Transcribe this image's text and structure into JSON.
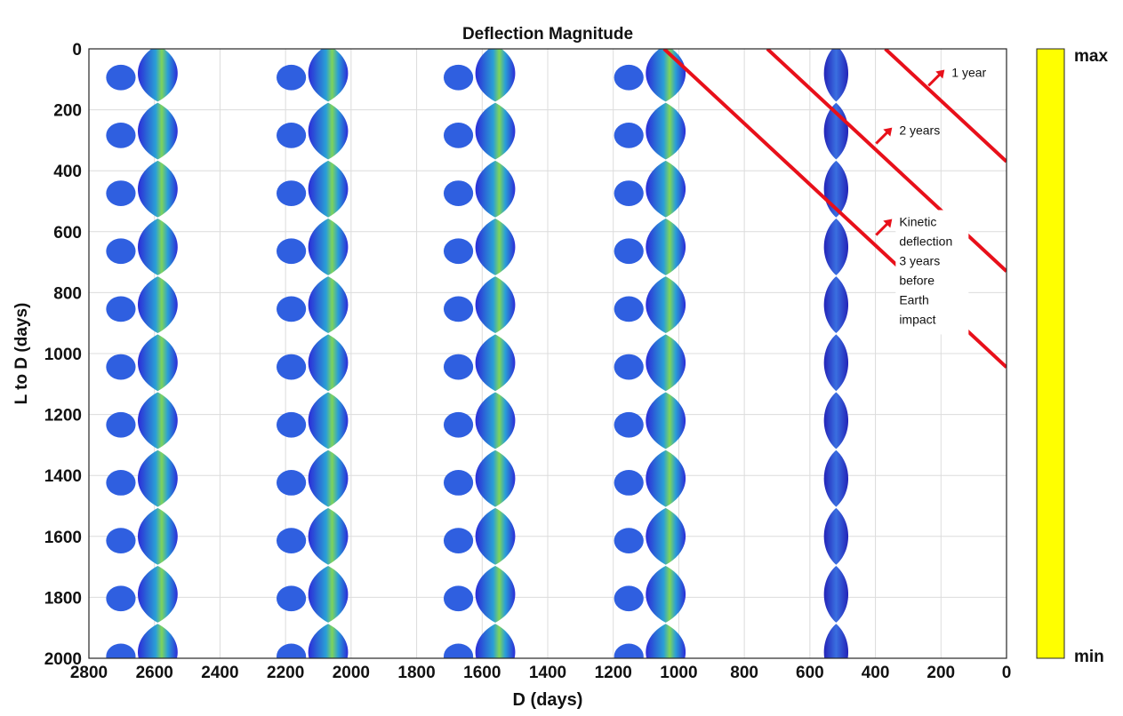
{
  "chart_data": {
    "type": "heatmap",
    "title": "Deflection Magnitude",
    "xlabel": "D (days)",
    "ylabel": "L to D (days)",
    "xlim": [
      2800,
      0
    ],
    "ylim": [
      0,
      2000
    ],
    "x_reversed": true,
    "y_inverted": true,
    "grid": true,
    "x_ticks": [
      2800,
      2600,
      2400,
      2200,
      2000,
      1800,
      1600,
      1400,
      1200,
      1000,
      800,
      600,
      400,
      200,
      0
    ],
    "y_ticks": [
      0,
      200,
      400,
      600,
      800,
      1000,
      1200,
      1400,
      1600,
      1800,
      2000
    ],
    "colorbar": {
      "max_label": "max",
      "min_label": "min",
      "color": "#ffff00"
    },
    "column_centers": [
      2590,
      2070,
      1560,
      1040,
      520
    ],
    "column_period": 190,
    "deflection_lines": [
      {
        "label": "1 year",
        "x_start": 370,
        "y_start": 0,
        "x_end": 0,
        "y_end": 370
      },
      {
        "label": "2 years",
        "x_start": 730,
        "y_start": 0,
        "x_end": 0,
        "y_end": 730
      },
      {
        "label": "Kinetic deflection 3 years before Earth impact",
        "x_start": 1045,
        "y_start": 0,
        "x_end": 0,
        "y_end": 1045
      }
    ],
    "annotations": [
      {
        "lines": [
          "1 year"
        ],
        "x": 200,
        "y": 80
      },
      {
        "lines": [
          "2 years"
        ],
        "x": 360,
        "y": 270
      },
      {
        "lines": [
          "Kinetic",
          "deflection",
          "3 years",
          "before",
          "Earth",
          "impact"
        ],
        "x": 360,
        "y": 570
      }
    ],
    "colors": {
      "line": "#e8101a",
      "low": "#2b2bd8",
      "mid": "#2a9fd6",
      "high": "#7fd45a"
    }
  }
}
